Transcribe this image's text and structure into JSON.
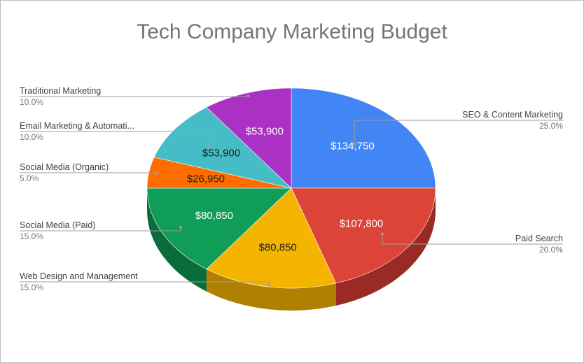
{
  "chart_data": {
    "type": "pie",
    "title": "Tech Company Marketing Budget",
    "slices": [
      {
        "label": "SEO & Content Marketing",
        "display_label": "SEO & Content Marketing",
        "value": 134750,
        "value_label": "$134,750",
        "percent_label": "25.0%",
        "color": "#4285f4",
        "side_color": "#2a5aa8",
        "text_color": "#ffffff"
      },
      {
        "label": "Paid Search",
        "display_label": "Paid Search",
        "value": 107800,
        "value_label": "$107,800",
        "percent_label": "20.0%",
        "color": "#db4437",
        "side_color": "#9a2b24",
        "text_color": "#ffffff"
      },
      {
        "label": "Web Design and Management",
        "display_label": "Web Design and Management",
        "value": 80850,
        "value_label": "$80,850",
        "percent_label": "15.0%",
        "color": "#f4b400",
        "side_color": "#b08100",
        "text_color": "#212121"
      },
      {
        "label": "Social Media (Paid)",
        "display_label": "Social Media (Paid)",
        "value": 80850,
        "value_label": "$80,850",
        "percent_label": "15.0%",
        "color": "#0f9d58",
        "side_color": "#0a6b3c",
        "text_color": "#ffffff"
      },
      {
        "label": "Social Media (Organic)",
        "display_label": "Social Media (Organic)",
        "value": 26950,
        "value_label": "$26,950",
        "percent_label": "5.0%",
        "color": "#ff6d00",
        "side_color": "#b34c00",
        "text_color": "#212121"
      },
      {
        "label": "Email Marketing & Automation",
        "display_label": "Email Marketing & Automati...",
        "value": 53900,
        "value_label": "$53,900",
        "percent_label": "10.0%",
        "color": "#46bdc6",
        "side_color": "#2e8a91",
        "text_color": "#212121"
      },
      {
        "label": "Traditional Marketing",
        "display_label": "Traditional Marketing",
        "value": 53900,
        "value_label": "$53,900",
        "percent_label": "10.0%",
        "color": "#ab30c4",
        "side_color": "#7a1f8c",
        "text_color": "#ffffff"
      }
    ],
    "legend": "labels-outside",
    "style": "3d"
  }
}
